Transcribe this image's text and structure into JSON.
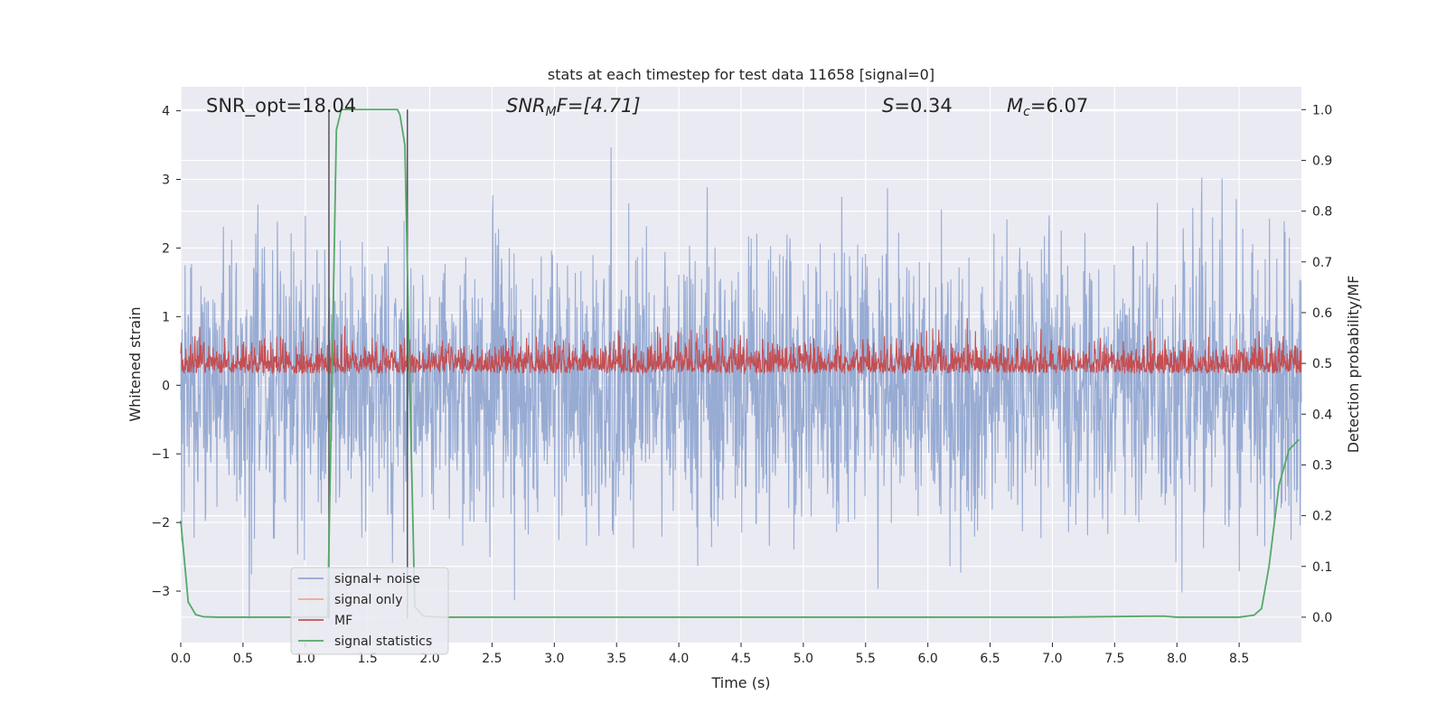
{
  "chart_data": {
    "type": "line",
    "title": "stats at each timestep for test data 11658 [signal=0]",
    "xlabel": "Time (s)",
    "ylabel_left": "Whitened strain",
    "ylabel_right": "Detection probability/MF",
    "xlim": [
      0.0,
      9.0
    ],
    "ylim_left": [
      -3.75,
      4.35
    ],
    "ylim_right": [
      -0.05,
      1.045
    ],
    "xticks": [
      0.0,
      0.5,
      1.0,
      1.5,
      2.0,
      2.5,
      3.0,
      3.5,
      4.0,
      4.5,
      5.0,
      5.5,
      6.0,
      6.5,
      7.0,
      7.5,
      8.0,
      8.5
    ],
    "xtick_labels": [
      "0.0",
      "0.5",
      "1.0",
      "1.5",
      "2.0",
      "2.5",
      "3.0",
      "3.5",
      "4.0",
      "4.5",
      "5.0",
      "5.5",
      "6.0",
      "6.5",
      "7.0",
      "7.5",
      "8.0",
      "8.5"
    ],
    "yticks_left": [
      -3,
      -2,
      -1,
      0,
      1,
      2,
      3,
      4
    ],
    "ytick_labels_left": [
      "−3",
      "−2",
      "−1",
      "0",
      "1",
      "2",
      "3",
      "4"
    ],
    "yticks_right": [
      0.0,
      0.1,
      0.2,
      0.3,
      0.4,
      0.5,
      0.6,
      0.7,
      0.8,
      0.9,
      1.0
    ],
    "ytick_labels_right": [
      "0.0",
      "0.1",
      "0.2",
      "0.3",
      "0.4",
      "0.5",
      "0.6",
      "0.7",
      "0.8",
      "0.9",
      "1.0"
    ],
    "grid": true,
    "annotations": {
      "snr_opt": "SNR_opt=18.04",
      "snr_mf_main": "SNR",
      "snr_mf_sub": "M",
      "snr_mf_rest": "F=[4.71]",
      "s_main": "S",
      "s_rest": "=0.34",
      "mc_main": "M",
      "mc_sub": "c",
      "mc_rest": "=6.07"
    },
    "vertical_markers": [
      1.19,
      1.82
    ],
    "legend_position": "lower-left",
    "series": [
      {
        "name": "signal+ noise",
        "axis": "left",
        "color": "#92a8d1",
        "description": "whitened strain noise, amplitude roughly between -3.4 and 4.0"
      },
      {
        "name": "signal only",
        "axis": "left",
        "color": "#e8a98f",
        "values": []
      },
      {
        "name": "MF",
        "axis": "right",
        "color": "#c44e52",
        "description": "matched filter output fluctuating around 0.5 (0.45 to 0.6)"
      },
      {
        "name": "signal statistics",
        "axis": "right",
        "color": "#55a868",
        "x": [
          0.0,
          0.06,
          0.12,
          0.18,
          0.3,
          0.6,
          1.0,
          1.18,
          1.22,
          1.25,
          1.29,
          1.35,
          1.5,
          1.74,
          1.76,
          1.8,
          1.84,
          1.88,
          1.95,
          2.1,
          3.0,
          5.0,
          7.0,
          7.8,
          7.9,
          8.0,
          8.5,
          8.62,
          8.68,
          8.74,
          8.82,
          8.9,
          8.98
        ],
        "y": [
          0.19,
          0.03,
          0.005,
          0.001,
          0.0,
          0.0,
          0.0,
          0.0,
          0.55,
          0.96,
          1.0,
          1.0,
          1.0,
          1.0,
          0.99,
          0.93,
          0.45,
          0.02,
          0.002,
          0.0,
          0.0,
          0.0,
          0.0,
          0.002,
          0.002,
          0.0,
          0.0,
          0.004,
          0.017,
          0.1,
          0.26,
          0.33,
          0.35
        ]
      }
    ]
  }
}
